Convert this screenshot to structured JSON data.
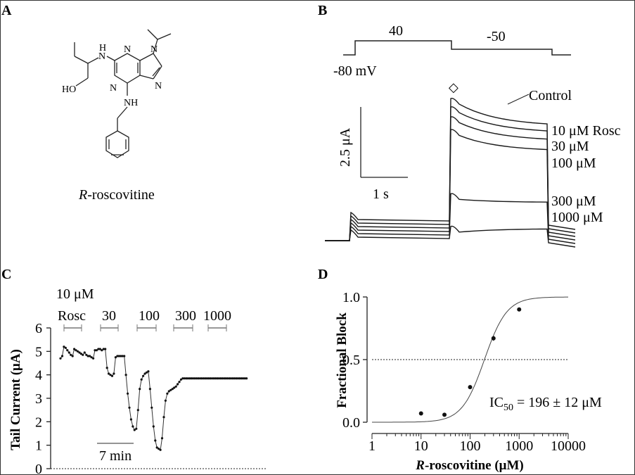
{
  "panels": {
    "A": {
      "letter": "A",
      "atoms": {
        "nh1": "N",
        "h1": "H",
        "n_ring1": "N",
        "n_ring2": "N",
        "n_ring3": "N",
        "n_ring4": "N",
        "ho": "HO",
        "nh2": "NH"
      },
      "caption_italic": "R",
      "caption_rest": "-roscovitine"
    },
    "B": {
      "letter": "B",
      "protocol": {
        "step1": "40",
        "step2": "-50",
        "hold": "-80 mV"
      },
      "marker": "◇",
      "scale": {
        "y": "2.5 μA",
        "x": "1 s"
      },
      "trace_labels": [
        "Control",
        "10 μM Rosc",
        "30 μM",
        "100 μM",
        "300 μM",
        "1000 μM"
      ]
    },
    "C": {
      "letter": "C",
      "ylabel": "Tail Current (μA)",
      "yticks": [
        "0",
        "1",
        "2",
        "3",
        "4",
        "5",
        "6"
      ],
      "top_label": "10 μM",
      "bar_labels": [
        "Rosc",
        "30",
        "100",
        "300",
        "1000"
      ],
      "scale_label": "7 min"
    },
    "D": {
      "letter": "D",
      "ylabel": "Fractional Block",
      "xlabel_italic": "R",
      "xlabel_rest": "-roscovitine (μM)",
      "yticks": [
        "0.0",
        "0.5",
        "1.0"
      ],
      "xticks": [
        "1",
        "10",
        "100",
        "1000",
        "10000"
      ],
      "ic50_prefix": "IC",
      "ic50_sub": "50",
      "ic50_value": " = 196 ± 12 μM"
    }
  },
  "chart_data": [
    {
      "type": "line",
      "panel": "B",
      "xlabel": "",
      "ylabel": "",
      "series": [
        {
          "name": "Control",
          "peak": 1.0
        },
        {
          "name": "10 μM Rosc",
          "peak": 0.94
        },
        {
          "name": "30 μM",
          "peak": 0.87
        },
        {
          "name": "100 μM",
          "peak": 0.78
        },
        {
          "name": "300 μM",
          "peak": 0.33
        },
        {
          "name": "1000 μM",
          "peak": 0.1
        }
      ]
    },
    {
      "type": "scatter",
      "panel": "C",
      "xlabel": "",
      "ylabel": "Tail Current (μA)",
      "ylim": [
        0,
        6
      ],
      "xlim": [
        0,
        60
      ],
      "baseline": 0,
      "series": [
        {
          "name": "",
          "x": [
            0,
            0.5,
            1,
            1.5,
            2,
            2.5,
            3,
            3.5,
            4,
            4.5,
            5,
            5.5,
            6,
            6.5,
            7,
            7.5,
            8,
            8.5,
            9,
            9.5,
            10,
            10.5,
            11,
            11.5,
            12,
            12.5,
            13,
            13.5,
            14,
            14.5,
            15,
            15.5,
            16,
            16.5,
            17,
            17.5,
            18,
            18.5,
            19,
            19.5,
            20,
            20.5,
            21,
            21.5,
            22,
            22.5,
            23,
            23.5,
            24,
            24.5,
            25,
            25.5,
            26,
            26.5,
            27,
            27.5,
            28,
            28.5,
            29,
            29.5,
            30,
            30.5,
            31,
            31.5,
            32,
            32.5,
            33,
            33.5,
            34,
            34.5,
            35,
            35.5,
            36,
            36.5,
            37,
            37.5,
            38,
            38.5,
            39,
            39.5,
            40,
            40.5,
            41,
            41.5,
            42,
            42.5,
            43,
            43.5,
            44,
            44.5,
            45,
            45.5,
            46,
            46.5,
            47,
            47.5,
            48,
            48.5,
            49,
            49.5,
            50,
            50.5,
            51,
            51.5,
            52,
            52.5,
            53,
            53.5,
            54
          ],
          "values": [
            4.7,
            4.8,
            5.2,
            5.15,
            5.05,
            4.95,
            4.85,
            4.8,
            5.1,
            5.05,
            5.0,
            4.95,
            4.9,
            4.85,
            4.95,
            4.85,
            4.8,
            4.8,
            4.75,
            4.7,
            5.05,
            5.05,
            5.1,
            5.1,
            5.05,
            5.1,
            5.1,
            4.3,
            4.05,
            4.0,
            3.95,
            4.05,
            4.75,
            4.8,
            4.8,
            4.8,
            4.8,
            4.8,
            4.0,
            3.2,
            2.6,
            2.1,
            1.8,
            1.65,
            1.7,
            2.5,
            3.4,
            3.8,
            3.95,
            4.05,
            4.1,
            4.15,
            3.4,
            2.6,
            1.8,
            1.2,
            0.9,
            0.85,
            0.8,
            1.3,
            2.2,
            2.9,
            3.2,
            3.3,
            3.35,
            3.4,
            3.45,
            3.5,
            3.6,
            3.7,
            3.8,
            3.85,
            3.85,
            3.85,
            3.85,
            3.85,
            3.85,
            3.85,
            3.85,
            3.85,
            3.85,
            3.85,
            3.85,
            3.85,
            3.85,
            3.85,
            3.85,
            3.85,
            3.85,
            3.85,
            3.85,
            3.85,
            3.85,
            3.85,
            3.85,
            3.85,
            3.85,
            3.85,
            3.85,
            3.85,
            3.85,
            3.85,
            3.85,
            3.85,
            3.85,
            3.85,
            3.85,
            3.85,
            3.85
          ]
        }
      ]
    },
    {
      "type": "scatter",
      "panel": "D",
      "xlabel": "R-roscovitine (μM)",
      "ylabel": "Fractional Block",
      "xscale": "log",
      "xlim": [
        1,
        10000
      ],
      "ylim": [
        0,
        1.0
      ],
      "reference_line": 0.5,
      "x": [
        10,
        30,
        100,
        300,
        1000
      ],
      "values": [
        0.07,
        0.06,
        0.28,
        0.67,
        0.9
      ],
      "errors": [
        0.01,
        0.01,
        0.015,
        0.02,
        0.01
      ],
      "fit": {
        "ic50": 196,
        "hill": 1.9
      }
    }
  ]
}
